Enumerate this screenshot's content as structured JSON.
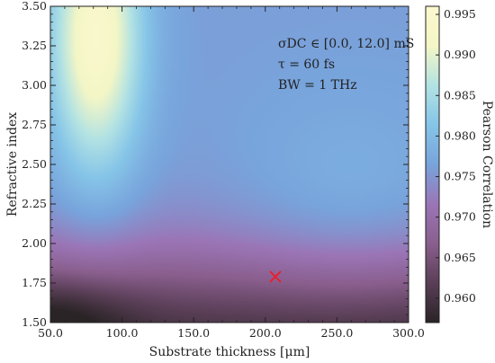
{
  "chart_data": {
    "type": "heatmap",
    "xlabel": "Substrate thickness [μm]",
    "ylabel": "Refractive index",
    "xlim": [
      50,
      300
    ],
    "ylim": [
      1.5,
      3.5
    ],
    "xticks": [
      "50.0",
      "100.0",
      "150.0",
      "200.0",
      "250.0",
      "300.0"
    ],
    "yticks": [
      "1.50",
      "1.75",
      "2.00",
      "2.25",
      "2.50",
      "2.75",
      "3.00",
      "3.25",
      "3.50"
    ],
    "colorbar": {
      "label": "Pearson Correlation",
      "range": [
        0.957,
        0.996
      ],
      "ticks": [
        "0.960",
        "0.965",
        "0.970",
        "0.975",
        "0.980",
        "0.985",
        "0.990",
        "0.995"
      ]
    },
    "annotation": [
      "σDC ∈ [0.0, 12.0] mS",
      "τ = 60 fs",
      "BW = 1 THz"
    ],
    "marker": {
      "x": 207,
      "y": 1.79,
      "symbol": "x",
      "color": "#e8202a"
    },
    "grid": false,
    "colormap": [
      "#2a2426",
      "#5a3f57",
      "#8a5f8e",
      "#9b76b7",
      "#78a4dc",
      "#86c5e8",
      "#b3e3e3",
      "#f4f6c6",
      "#fbf8cf"
    ]
  }
}
